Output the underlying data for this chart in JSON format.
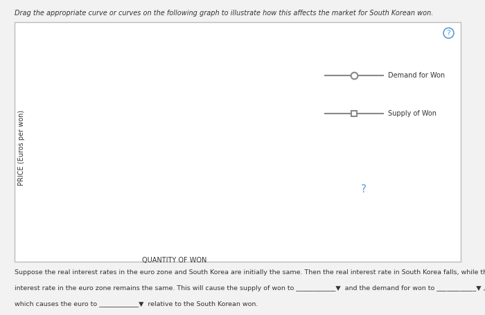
{
  "title": "Drag the appropriate curve or curves on the following graph to illustrate how this affects the market for South Korean won.",
  "ylabel": "PRICE (Euros per won)",
  "xlabel": "QUANTITY OF WON",
  "supply_color": "#E8A020",
  "demand_color": "#6aaad4",
  "dashed_color": "#444444",
  "legend_demand_label": "Demand for Won",
  "legend_supply_label": "Supply of Won",
  "question_mark": "?",
  "footer_line1": "Suppose the real interest rates in the euro zone and South Korea are initially the same. Then the real interest rate in South Korea falls, while the real",
  "footer_line2": "interest rate in the euro zone remains the same. This will cause the supply of won to ____________▼  and the demand for won to ____________▼ ,",
  "footer_line3": "which causes the euro to ____________▼  relative to the South Korean won.",
  "outer_bg": "#f2f2f2",
  "graph_bg": "#ffffff",
  "border_color": "#bbbbbb",
  "legend_line_color": "#888888"
}
